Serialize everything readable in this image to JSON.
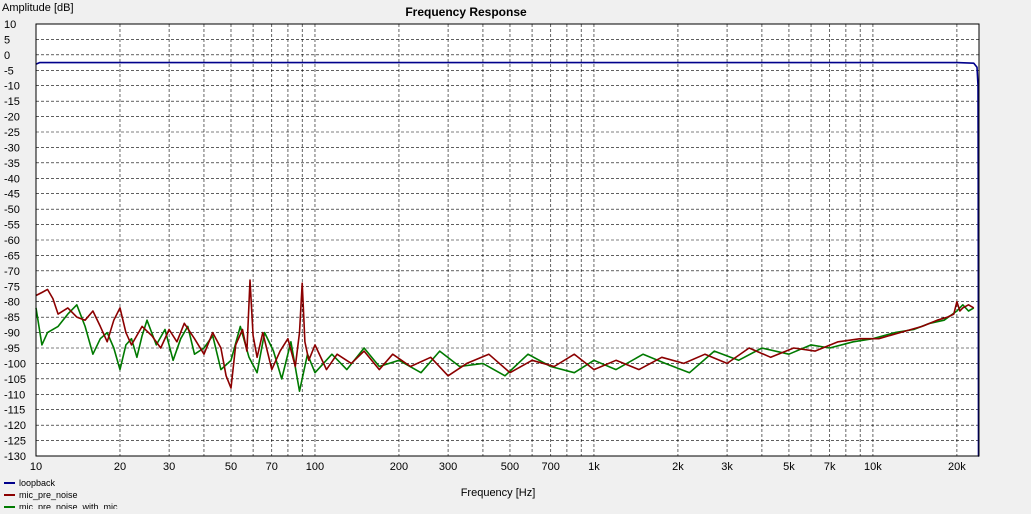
{
  "chart_data": {
    "type": "line",
    "title": "Frequency Response",
    "xlabel": "Frequency [Hz]",
    "ylabel": "Amplitude [dB]",
    "x_scale": "log",
    "xlim": [
      10,
      24000
    ],
    "ylim": [
      -130,
      10
    ],
    "grid": true,
    "legend_position": "bottom-left",
    "x_ticks": [
      {
        "value": 10,
        "label": "10"
      },
      {
        "value": 20,
        "label": "20"
      },
      {
        "value": 30,
        "label": "30"
      },
      {
        "value": 50,
        "label": "50"
      },
      {
        "value": 70,
        "label": "70"
      },
      {
        "value": 100,
        "label": "100"
      },
      {
        "value": 200,
        "label": "200"
      },
      {
        "value": 300,
        "label": "300"
      },
      {
        "value": 500,
        "label": "500"
      },
      {
        "value": 700,
        "label": "700"
      },
      {
        "value": 1000,
        "label": "1k"
      },
      {
        "value": 2000,
        "label": "2k"
      },
      {
        "value": 3000,
        "label": "3k"
      },
      {
        "value": 5000,
        "label": "5k"
      },
      {
        "value": 7000,
        "label": "7k"
      },
      {
        "value": 10000,
        "label": "10k"
      },
      {
        "value": 20000,
        "label": "20k"
      }
    ],
    "y_ticks": [
      10,
      5,
      0,
      -5,
      -10,
      -15,
      -20,
      -25,
      -30,
      -35,
      -40,
      -45,
      -50,
      -55,
      -60,
      -65,
      -70,
      -75,
      -80,
      -85,
      -90,
      -95,
      -100,
      -105,
      -110,
      -115,
      -120,
      -125,
      -130
    ],
    "series": [
      {
        "name": "loopback",
        "color": "#00008b",
        "x": [
          10,
          10.3,
          11,
          20,
          50,
          100,
          500,
          1000,
          5000,
          10000,
          20000,
          23000,
          23600,
          23800,
          23850,
          23900,
          24000
        ],
        "y": [
          -3,
          -2.5,
          -2.5,
          -2.5,
          -2.5,
          -2.5,
          -2.5,
          -2.5,
          -2.5,
          -2.5,
          -2.5,
          -2.7,
          -4,
          -10,
          -40,
          -130,
          -130
        ]
      },
      {
        "name": "mic_pre_noise_with_mic",
        "color": "#007a00",
        "x": [
          10,
          10.5,
          11,
          12,
          13,
          14,
          15,
          16,
          17,
          18,
          19,
          20,
          21,
          22,
          23,
          24,
          25,
          27,
          29,
          31,
          33,
          35,
          37,
          40,
          43,
          46,
          50,
          54,
          58,
          62,
          66,
          71,
          76,
          82,
          88,
          94,
          100,
          115,
          130,
          150,
          170,
          200,
          240,
          280,
          330,
          400,
          480,
          580,
          700,
          850,
          1000,
          1200,
          1500,
          1800,
          2200,
          2700,
          3300,
          4000,
          5000,
          6000,
          7000,
          8500,
          10000,
          12000,
          14000,
          16000,
          18000,
          20000,
          21000,
          22000,
          23000
        ],
        "y": [
          -82,
          -94,
          -90,
          -88,
          -84,
          -81,
          -88,
          -97,
          -92,
          -90,
          -95,
          -102,
          -94,
          -92,
          -98,
          -91,
          -86,
          -94,
          -89,
          -99,
          -92,
          -88,
          -97,
          -95,
          -91,
          -102,
          -99,
          -88,
          -98,
          -103,
          -90,
          -96,
          -105,
          -93,
          -109,
          -97,
          -103,
          -97,
          -102,
          -95,
          -101,
          -99,
          -103,
          -96,
          -101,
          -100,
          -104,
          -97,
          -101,
          -103,
          -99,
          -102,
          -97,
          -100,
          -103,
          -96,
          -99,
          -95,
          -97,
          -94,
          -95,
          -93,
          -92,
          -90,
          -89,
          -87,
          -86,
          -83,
          -81,
          -83,
          -82
        ]
      },
      {
        "name": "mic_pre_noise",
        "color": "#8b0000",
        "x": [
          10,
          10.5,
          11,
          11.5,
          12,
          13,
          14,
          15,
          16,
          17,
          18,
          19,
          20,
          21,
          22,
          24,
          26,
          28,
          30,
          32,
          34,
          37,
          40,
          43,
          46,
          48,
          50,
          52,
          55,
          57,
          58.5,
          60,
          62,
          65,
          70,
          75,
          80,
          85,
          88,
          90,
          92,
          95,
          100,
          110,
          120,
          135,
          150,
          170,
          190,
          220,
          260,
          300,
          350,
          420,
          500,
          600,
          720,
          850,
          1000,
          1200,
          1450,
          1750,
          2100,
          2500,
          3000,
          3600,
          4300,
          5200,
          6200,
          7500,
          9000,
          10500,
          12500,
          15000,
          17000,
          18500,
          19500,
          20000,
          20500,
          21000,
          22000,
          23000
        ],
        "y": [
          -78,
          -77,
          -76,
          -79,
          -84,
          -82,
          -85,
          -86,
          -83,
          -88,
          -93,
          -86,
          -82,
          -90,
          -94,
          -88,
          -91,
          -95,
          -89,
          -93,
          -87,
          -92,
          -97,
          -90,
          -95,
          -104,
          -108,
          -94,
          -89,
          -96,
          -73,
          -91,
          -98,
          -90,
          -102,
          -96,
          -92,
          -101,
          -90,
          -74,
          -93,
          -99,
          -94,
          -102,
          -97,
          -100,
          -96,
          -102,
          -97,
          -101,
          -98,
          -104,
          -100,
          -97,
          -103,
          -99,
          -101,
          -97,
          -102,
          -99,
          -102,
          -98,
          -100,
          -97,
          -100,
          -95,
          -98,
          -95,
          -96,
          -93,
          -92,
          -92,
          -90,
          -88,
          -86,
          -85,
          -84,
          -80,
          -83,
          -82,
          -81,
          -82
        ]
      }
    ]
  }
}
